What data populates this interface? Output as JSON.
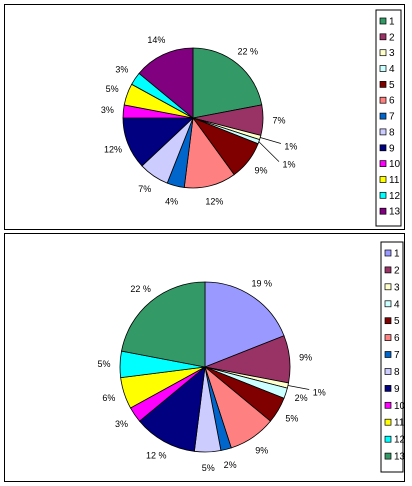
{
  "chart_data": [
    {
      "type": "pie",
      "title": "",
      "categories": [
        "1",
        "2",
        "3",
        "4",
        "5",
        "6",
        "7",
        "8",
        "9",
        "10",
        "11",
        "12",
        "13"
      ],
      "values": [
        22,
        7,
        1,
        1,
        9,
        12,
        4,
        7,
        12,
        3,
        5,
        3,
        14
      ],
      "labels": [
        "22 %",
        "7%",
        "1%",
        "1%",
        "9%",
        "12%",
        "4%",
        "7%",
        "12%",
        "3%",
        "5%",
        "3%",
        "14%"
      ],
      "colors": [
        "#339966",
        "#993366",
        "#FFFFCC",
        "#CCFFFF",
        "#800000",
        "#FF8080",
        "#0066CC",
        "#CCCCFF",
        "#000080",
        "#FF00FF",
        "#FFFF00",
        "#00FFFF",
        "#800080"
      ],
      "legend": [
        "1",
        "2",
        "3",
        "4",
        "5",
        "6",
        "7",
        "8",
        "9",
        "10",
        "11",
        "12",
        "13"
      ],
      "legend_position": "right"
    },
    {
      "type": "pie",
      "title": "",
      "categories": [
        "1",
        "2",
        "3",
        "4",
        "5",
        "6",
        "7",
        "8",
        "9",
        "10",
        "11",
        "12",
        "13"
      ],
      "values": [
        19,
        9,
        1,
        2,
        5,
        9,
        2,
        5,
        12,
        3,
        6,
        5,
        22
      ],
      "labels": [
        "19 %",
        "9%",
        "1%",
        "2%",
        "5%",
        "9%",
        "2%",
        "5%",
        "12 %",
        "3%",
        "6%",
        "5%",
        "22 %"
      ],
      "colors": [
        "#9999FF",
        "#993366",
        "#FFFFCC",
        "#CCFFFF",
        "#800000",
        "#FF8080",
        "#0066CC",
        "#CCCCFF",
        "#000080",
        "#FF00FF",
        "#FFFF00",
        "#00FFFF",
        "#339966"
      ],
      "legend": [
        "1",
        "2",
        "3",
        "4",
        "5",
        "6",
        "7",
        "8",
        "9",
        "10",
        "11",
        "12",
        "13"
      ],
      "legend_position": "right"
    }
  ]
}
